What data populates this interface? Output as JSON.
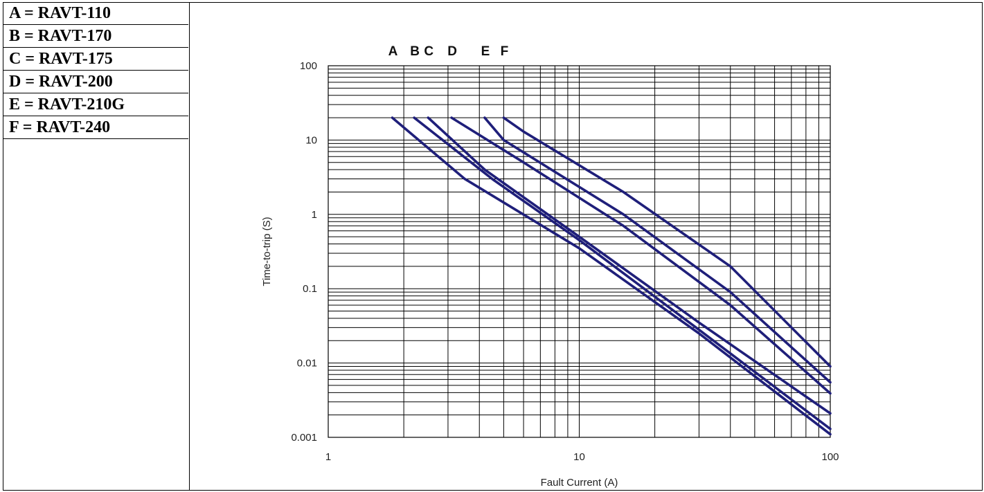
{
  "legend": [
    {
      "text": "A = RAVT-110"
    },
    {
      "text": "B = RAVT-170"
    },
    {
      "text": "C = RAVT-175"
    },
    {
      "text": "D = RAVT-200"
    },
    {
      "text": "E = RAVT-210G"
    },
    {
      "text": "F = RAVT-240"
    }
  ],
  "chart_data": {
    "type": "line",
    "title": "",
    "xlabel": "Fault Current (A)",
    "ylabel": "Time-to-trip (S)",
    "xscale": "log",
    "yscale": "log",
    "xlim": [
      1,
      100
    ],
    "ylim": [
      0.001,
      100
    ],
    "x_tick_labels": [
      "1",
      "10",
      "100"
    ],
    "y_tick_labels": [
      "100",
      "10",
      "1",
      "0.1",
      "0.01",
      "0.001"
    ],
    "grid": true,
    "line_color": "#1f1f7a",
    "curve_labels": [
      "A",
      "B",
      "C",
      "D",
      "E",
      "F"
    ],
    "series": [
      {
        "name": "A",
        "points": [
          [
            1.8,
            20
          ],
          [
            3.5,
            3
          ],
          [
            10,
            0.35
          ],
          [
            30,
            0.025
          ],
          [
            100,
            0.0011
          ]
        ]
      },
      {
        "name": "B",
        "points": [
          [
            2.2,
            20
          ],
          [
            4.5,
            3
          ],
          [
            10,
            0.45
          ],
          [
            30,
            0.028
          ],
          [
            100,
            0.0013
          ]
        ]
      },
      {
        "name": "C",
        "points": [
          [
            2.5,
            20
          ],
          [
            4.2,
            4
          ],
          [
            10,
            0.5
          ],
          [
            30,
            0.035
          ],
          [
            100,
            0.0021
          ]
        ]
      },
      {
        "name": "D",
        "points": [
          [
            3.1,
            20
          ],
          [
            6,
            5
          ],
          [
            15,
            0.7
          ],
          [
            40,
            0.06
          ],
          [
            100,
            0.0039
          ]
        ]
      },
      {
        "name": "E",
        "points": [
          [
            4.2,
            20
          ],
          [
            5,
            10
          ],
          [
            15,
            1
          ],
          [
            40,
            0.09
          ],
          [
            100,
            0.0055
          ]
        ]
      },
      {
        "name": "F",
        "points": [
          [
            5,
            20
          ],
          [
            6,
            13
          ],
          [
            15,
            2
          ],
          [
            40,
            0.2
          ],
          [
            100,
            0.009
          ]
        ]
      }
    ]
  }
}
